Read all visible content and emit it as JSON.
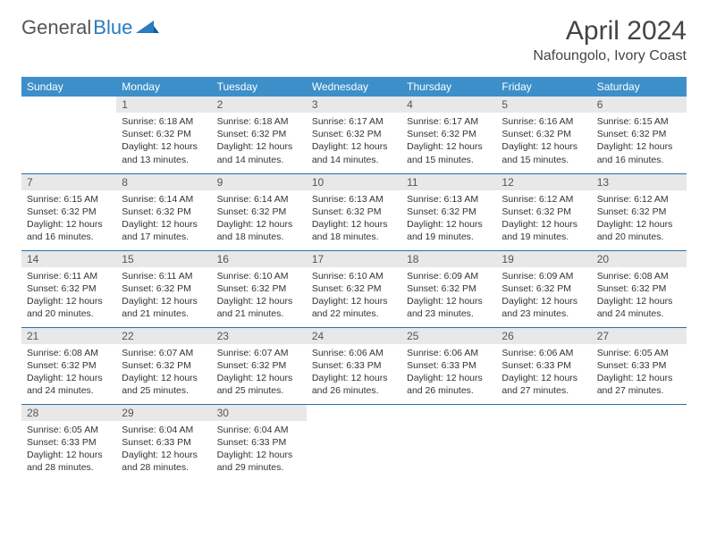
{
  "logo": {
    "general": "General",
    "blue": "Blue"
  },
  "title": "April 2024",
  "location": "Nafoungolo, Ivory Coast",
  "colors": {
    "header_bg": "#3d8fc9",
    "header_text": "#ffffff",
    "daynum_bg": "#e8e8e8",
    "row_divider": "#2a6fa8",
    "logo_blue": "#2a7bbf",
    "text": "#333333"
  },
  "weekdays": [
    "Sunday",
    "Monday",
    "Tuesday",
    "Wednesday",
    "Thursday",
    "Friday",
    "Saturday"
  ],
  "weeks": [
    [
      {
        "n": "",
        "sr": "",
        "ss": "",
        "d1": "",
        "d2": ""
      },
      {
        "n": "1",
        "sr": "Sunrise: 6:18 AM",
        "ss": "Sunset: 6:32 PM",
        "d1": "Daylight: 12 hours",
        "d2": "and 13 minutes."
      },
      {
        "n": "2",
        "sr": "Sunrise: 6:18 AM",
        "ss": "Sunset: 6:32 PM",
        "d1": "Daylight: 12 hours",
        "d2": "and 14 minutes."
      },
      {
        "n": "3",
        "sr": "Sunrise: 6:17 AM",
        "ss": "Sunset: 6:32 PM",
        "d1": "Daylight: 12 hours",
        "d2": "and 14 minutes."
      },
      {
        "n": "4",
        "sr": "Sunrise: 6:17 AM",
        "ss": "Sunset: 6:32 PM",
        "d1": "Daylight: 12 hours",
        "d2": "and 15 minutes."
      },
      {
        "n": "5",
        "sr": "Sunrise: 6:16 AM",
        "ss": "Sunset: 6:32 PM",
        "d1": "Daylight: 12 hours",
        "d2": "and 15 minutes."
      },
      {
        "n": "6",
        "sr": "Sunrise: 6:15 AM",
        "ss": "Sunset: 6:32 PM",
        "d1": "Daylight: 12 hours",
        "d2": "and 16 minutes."
      }
    ],
    [
      {
        "n": "7",
        "sr": "Sunrise: 6:15 AM",
        "ss": "Sunset: 6:32 PM",
        "d1": "Daylight: 12 hours",
        "d2": "and 16 minutes."
      },
      {
        "n": "8",
        "sr": "Sunrise: 6:14 AM",
        "ss": "Sunset: 6:32 PM",
        "d1": "Daylight: 12 hours",
        "d2": "and 17 minutes."
      },
      {
        "n": "9",
        "sr": "Sunrise: 6:14 AM",
        "ss": "Sunset: 6:32 PM",
        "d1": "Daylight: 12 hours",
        "d2": "and 18 minutes."
      },
      {
        "n": "10",
        "sr": "Sunrise: 6:13 AM",
        "ss": "Sunset: 6:32 PM",
        "d1": "Daylight: 12 hours",
        "d2": "and 18 minutes."
      },
      {
        "n": "11",
        "sr": "Sunrise: 6:13 AM",
        "ss": "Sunset: 6:32 PM",
        "d1": "Daylight: 12 hours",
        "d2": "and 19 minutes."
      },
      {
        "n": "12",
        "sr": "Sunrise: 6:12 AM",
        "ss": "Sunset: 6:32 PM",
        "d1": "Daylight: 12 hours",
        "d2": "and 19 minutes."
      },
      {
        "n": "13",
        "sr": "Sunrise: 6:12 AM",
        "ss": "Sunset: 6:32 PM",
        "d1": "Daylight: 12 hours",
        "d2": "and 20 minutes."
      }
    ],
    [
      {
        "n": "14",
        "sr": "Sunrise: 6:11 AM",
        "ss": "Sunset: 6:32 PM",
        "d1": "Daylight: 12 hours",
        "d2": "and 20 minutes."
      },
      {
        "n": "15",
        "sr": "Sunrise: 6:11 AM",
        "ss": "Sunset: 6:32 PM",
        "d1": "Daylight: 12 hours",
        "d2": "and 21 minutes."
      },
      {
        "n": "16",
        "sr": "Sunrise: 6:10 AM",
        "ss": "Sunset: 6:32 PM",
        "d1": "Daylight: 12 hours",
        "d2": "and 21 minutes."
      },
      {
        "n": "17",
        "sr": "Sunrise: 6:10 AM",
        "ss": "Sunset: 6:32 PM",
        "d1": "Daylight: 12 hours",
        "d2": "and 22 minutes."
      },
      {
        "n": "18",
        "sr": "Sunrise: 6:09 AM",
        "ss": "Sunset: 6:32 PM",
        "d1": "Daylight: 12 hours",
        "d2": "and 23 minutes."
      },
      {
        "n": "19",
        "sr": "Sunrise: 6:09 AM",
        "ss": "Sunset: 6:32 PM",
        "d1": "Daylight: 12 hours",
        "d2": "and 23 minutes."
      },
      {
        "n": "20",
        "sr": "Sunrise: 6:08 AM",
        "ss": "Sunset: 6:32 PM",
        "d1": "Daylight: 12 hours",
        "d2": "and 24 minutes."
      }
    ],
    [
      {
        "n": "21",
        "sr": "Sunrise: 6:08 AM",
        "ss": "Sunset: 6:32 PM",
        "d1": "Daylight: 12 hours",
        "d2": "and 24 minutes."
      },
      {
        "n": "22",
        "sr": "Sunrise: 6:07 AM",
        "ss": "Sunset: 6:32 PM",
        "d1": "Daylight: 12 hours",
        "d2": "and 25 minutes."
      },
      {
        "n": "23",
        "sr": "Sunrise: 6:07 AM",
        "ss": "Sunset: 6:32 PM",
        "d1": "Daylight: 12 hours",
        "d2": "and 25 minutes."
      },
      {
        "n": "24",
        "sr": "Sunrise: 6:06 AM",
        "ss": "Sunset: 6:33 PM",
        "d1": "Daylight: 12 hours",
        "d2": "and 26 minutes."
      },
      {
        "n": "25",
        "sr": "Sunrise: 6:06 AM",
        "ss": "Sunset: 6:33 PM",
        "d1": "Daylight: 12 hours",
        "d2": "and 26 minutes."
      },
      {
        "n": "26",
        "sr": "Sunrise: 6:06 AM",
        "ss": "Sunset: 6:33 PM",
        "d1": "Daylight: 12 hours",
        "d2": "and 27 minutes."
      },
      {
        "n": "27",
        "sr": "Sunrise: 6:05 AM",
        "ss": "Sunset: 6:33 PM",
        "d1": "Daylight: 12 hours",
        "d2": "and 27 minutes."
      }
    ],
    [
      {
        "n": "28",
        "sr": "Sunrise: 6:05 AM",
        "ss": "Sunset: 6:33 PM",
        "d1": "Daylight: 12 hours",
        "d2": "and 28 minutes."
      },
      {
        "n": "29",
        "sr": "Sunrise: 6:04 AM",
        "ss": "Sunset: 6:33 PM",
        "d1": "Daylight: 12 hours",
        "d2": "and 28 minutes."
      },
      {
        "n": "30",
        "sr": "Sunrise: 6:04 AM",
        "ss": "Sunset: 6:33 PM",
        "d1": "Daylight: 12 hours",
        "d2": "and 29 minutes."
      },
      {
        "n": "",
        "sr": "",
        "ss": "",
        "d1": "",
        "d2": ""
      },
      {
        "n": "",
        "sr": "",
        "ss": "",
        "d1": "",
        "d2": ""
      },
      {
        "n": "",
        "sr": "",
        "ss": "",
        "d1": "",
        "d2": ""
      },
      {
        "n": "",
        "sr": "",
        "ss": "",
        "d1": "",
        "d2": ""
      }
    ]
  ]
}
